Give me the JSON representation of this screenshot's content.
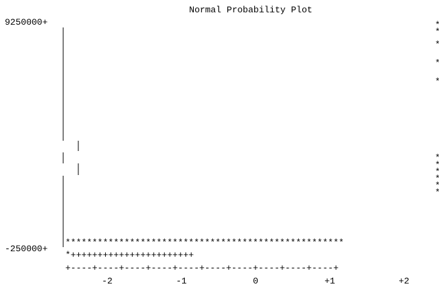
{
  "chart_data": {
    "type": "scatter",
    "title": "Normal Probability Plot",
    "xlabel": "",
    "ylabel": "",
    "ylim": [
      -250000,
      9250000
    ],
    "xlim": [
      -2.6,
      2.6
    ],
    "y_tick_labels": [
      "9250000+",
      "-250000+"
    ],
    "x_tick_labels": [
      "-2",
      "-1",
      "0",
      "+1",
      "+2"
    ],
    "x_ticks": [
      -2,
      -1,
      0,
      1,
      2
    ],
    "x_axis_text": "+----+----+----+----+----+----+----+----+----+----+",
    "reference_line_text": "*+++++++++++++++++++++++",
    "baseline_stars_text": "****************************************************",
    "marker": "*",
    "series": [
      {
        "values_note": "",
        "points": [
          {
            "x": 2.5,
            "y": 9250000
          },
          {
            "x": 2.5,
            "y": 8950000
          },
          {
            "x": 2.5,
            "y": 8400000
          },
          {
            "x": 2.5,
            "y": 7600000
          },
          {
            "x": 2.5,
            "y": 6800000
          },
          {
            "x": 2.5,
            "y": 3500000
          },
          {
            "x": 2.5,
            "y": 3200000
          },
          {
            "x": 2.5,
            "y": 2900000
          },
          {
            "x": 2.5,
            "y": 2600000
          },
          {
            "x": 2.5,
            "y": 2300000
          },
          {
            "x": 2.5,
            "y": 2000000
          }
        ]
      }
    ]
  }
}
